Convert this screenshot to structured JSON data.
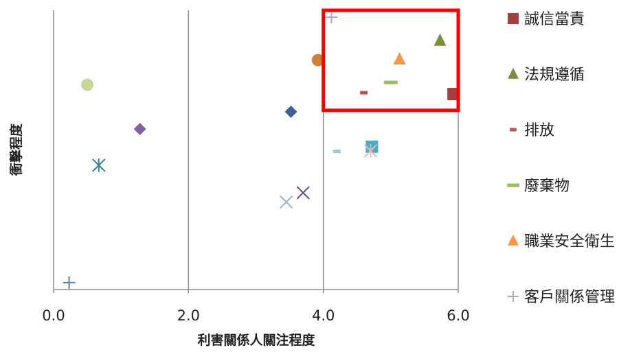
{
  "chart_data": {
    "type": "scatter",
    "title": "",
    "xlabel": "利害關係人關注程度",
    "ylabel": "衝擊程度",
    "xlim": [
      0,
      6
    ],
    "ylim": [
      0,
      6
    ],
    "x_ticks": [
      "0.0",
      "2.0",
      "4.0",
      "6.0"
    ],
    "grid": "vertical",
    "legend_position": "right",
    "highlight_box": {
      "x": [
        4.0,
        6.0
      ],
      "y": [
        3.85,
        6.0
      ],
      "color": "#FF0000"
    },
    "series": [
      {
        "name": "誠信當責",
        "marker": "square",
        "color": "#A5403E",
        "x": 5.93,
        "y": 4.2
      },
      {
        "name": "法規遵循",
        "marker": "triangle",
        "color": "#76933C",
        "x": 5.73,
        "y": 5.35
      },
      {
        "name": "排放",
        "marker": "dash",
        "color": "#C0504D",
        "x": 4.6,
        "y": 4.23
      },
      {
        "name": "廢棄物",
        "marker": "dash-wide",
        "color": "#9BBB59",
        "x": 5.0,
        "y": 4.45
      },
      {
        "name": "職業安全衛生",
        "marker": "triangle",
        "color": "#F79646",
        "x": 5.13,
        "y": 4.95
      },
      {
        "name": "客戶關係管理",
        "marker": "plus",
        "color": "#B3A2C7",
        "x": 4.12,
        "y": 5.85
      }
    ],
    "unlabeled_points": [
      {
        "marker": "circle",
        "color": "#C5D89C",
        "x": 0.5,
        "y": 4.4
      },
      {
        "marker": "diamond",
        "color": "#7F62A0",
        "x": 1.28,
        "y": 3.45
      },
      {
        "marker": "asterisk",
        "color": "#31849B",
        "x": 0.67,
        "y": 2.67
      },
      {
        "marker": "plus",
        "color": "#4F81BD",
        "x": 0.23,
        "y": 0.15
      },
      {
        "marker": "circle",
        "color": "#D0812F",
        "x": 3.92,
        "y": 4.93
      },
      {
        "marker": "diamond",
        "color": "#3C6396",
        "x": 3.52,
        "y": 3.82
      },
      {
        "marker": "cross",
        "color": "#604A7B",
        "x": 3.7,
        "y": 2.08
      },
      {
        "marker": "cross",
        "color": "#95B3D7",
        "x": 3.45,
        "y": 1.88
      },
      {
        "marker": "dash",
        "color": "#93CDDD",
        "x": 4.2,
        "y": 2.97
      },
      {
        "marker": "square",
        "color": "#4BACC6",
        "x": 4.72,
        "y": 3.07
      },
      {
        "marker": "asterisk",
        "color": "#E6B9B8",
        "x": 4.7,
        "y": 2.98
      }
    ]
  }
}
